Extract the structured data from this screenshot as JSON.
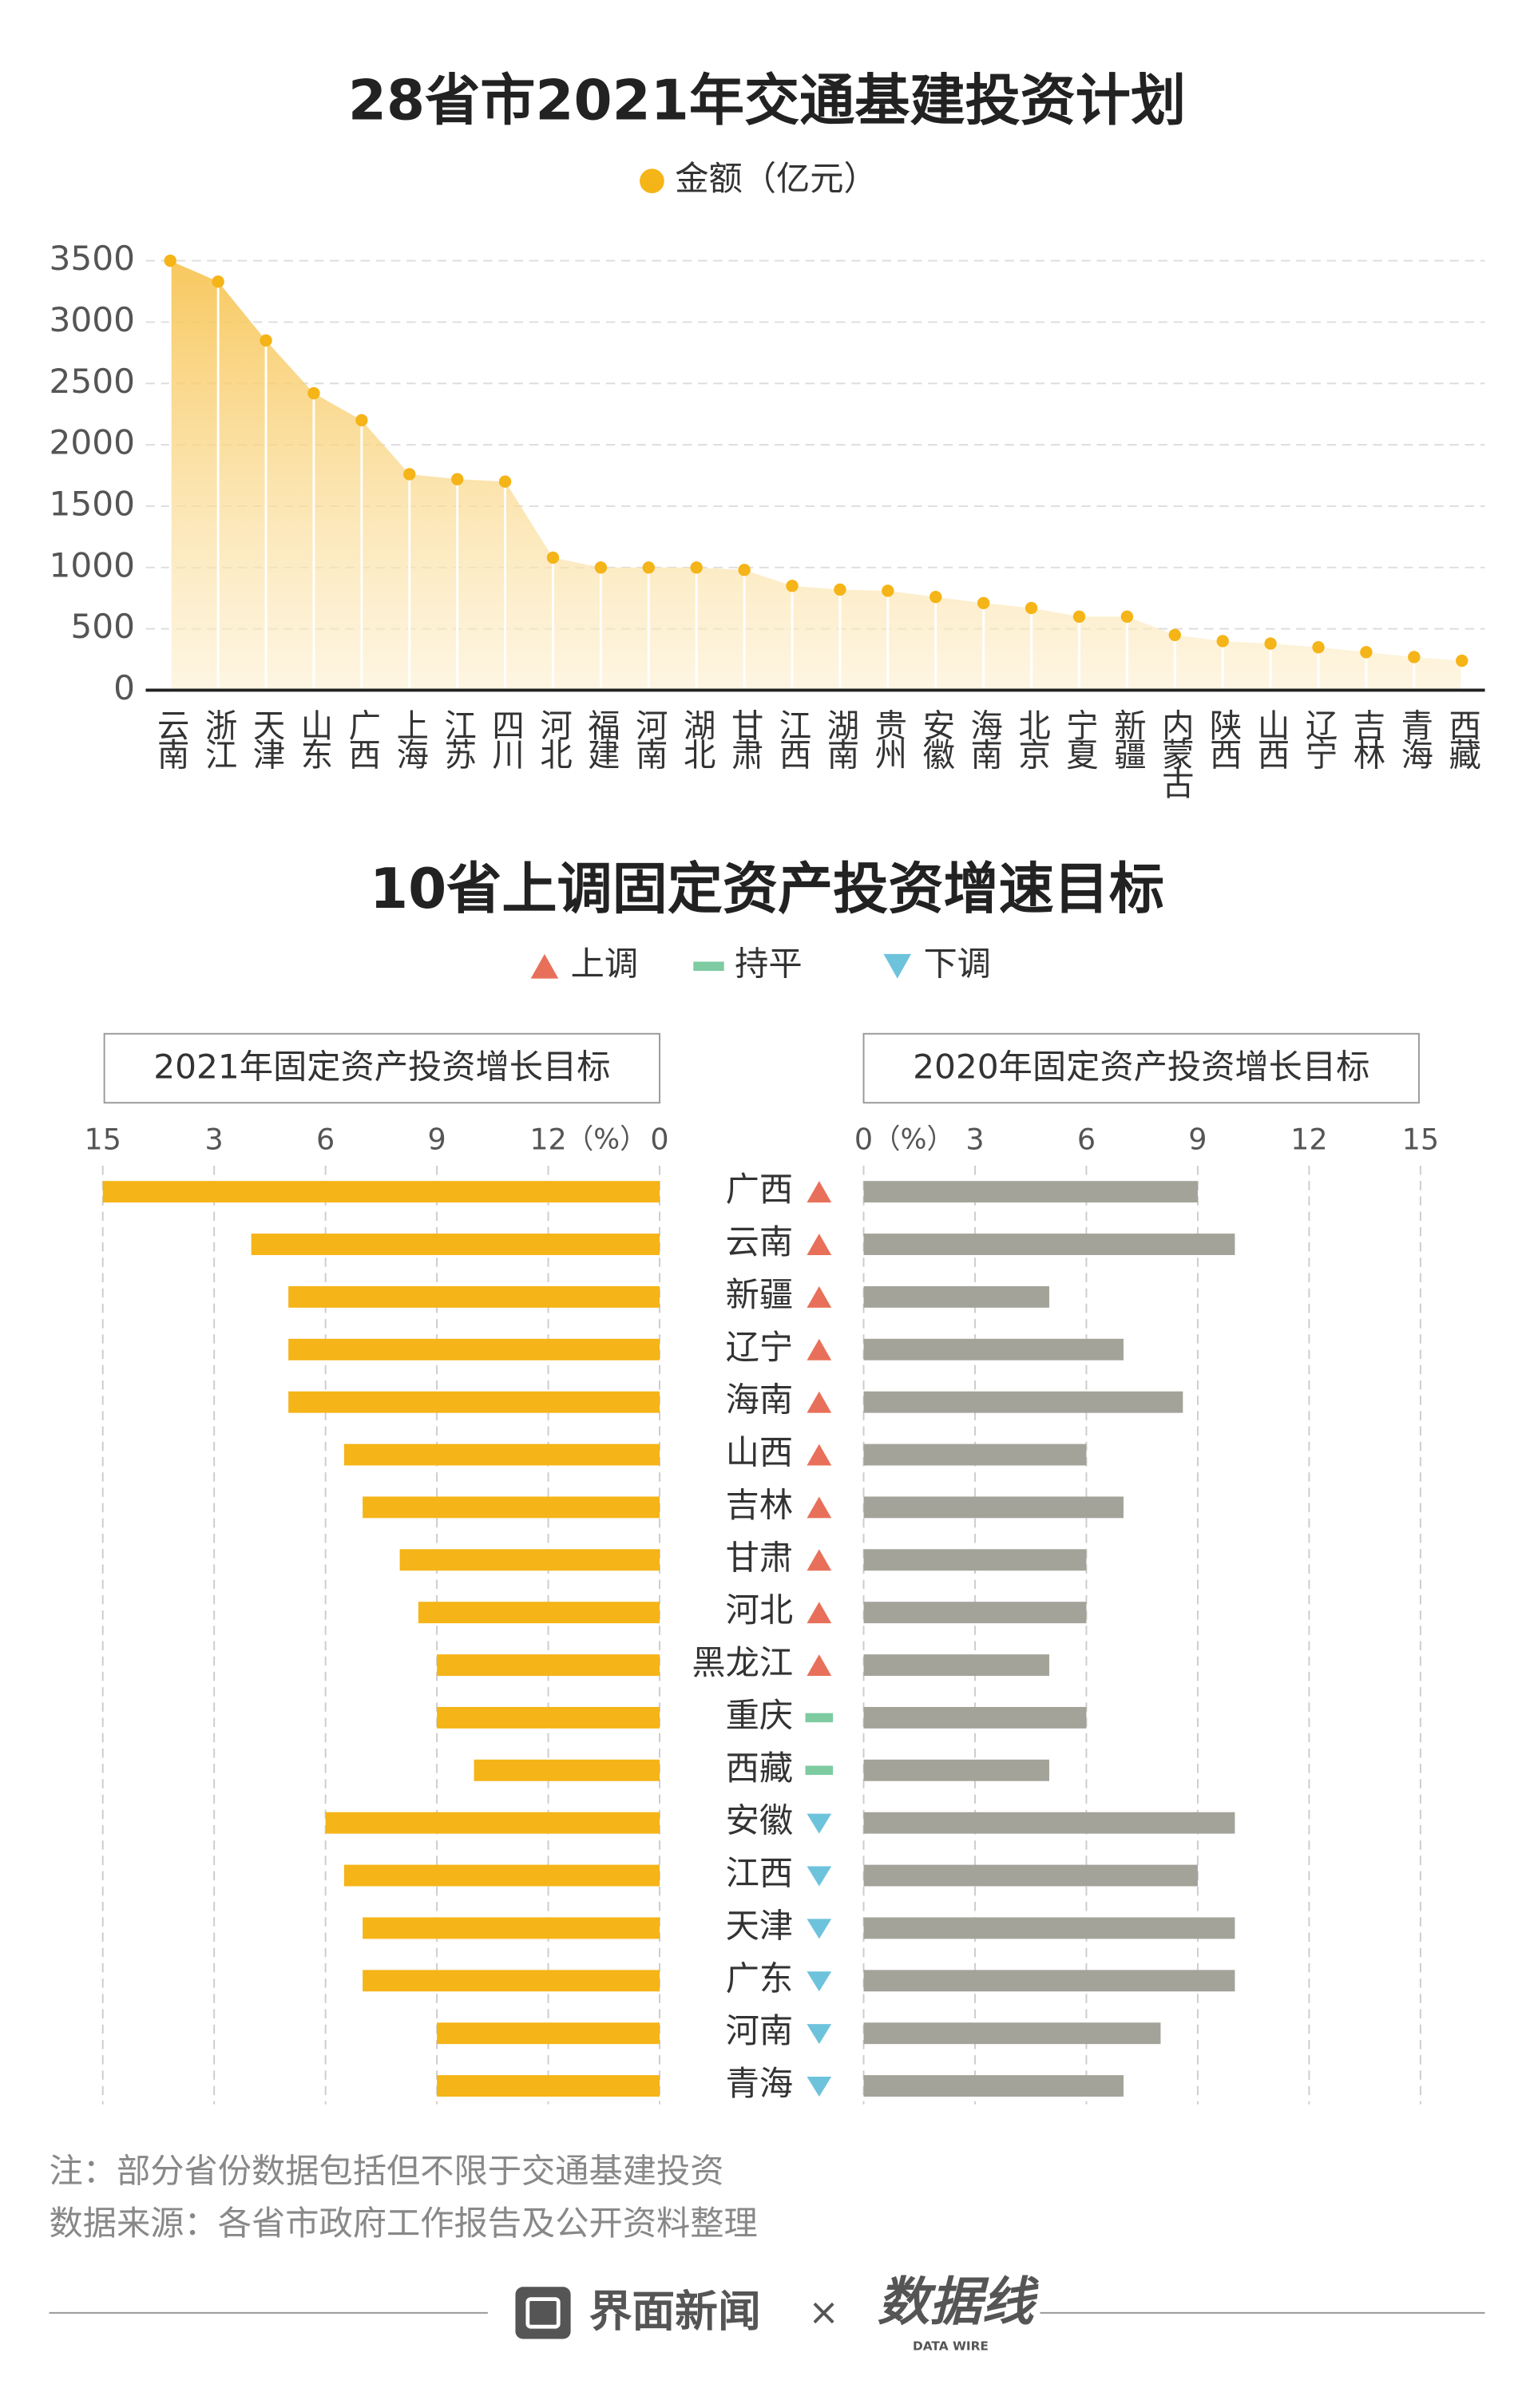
{
  "chart_data": [
    {
      "type": "area",
      "title": "28省市2021年交通基建投资计划",
      "categories": [
        "云南",
        "浙江",
        "天津",
        "山东",
        "广西",
        "上海",
        "江苏",
        "四川",
        "河北",
        "福建",
        "河南",
        "湖北",
        "甘肃",
        "江西",
        "湖南",
        "贵州",
        "安徽",
        "海南",
        "北京",
        "宁夏",
        "新疆",
        "内蒙古",
        "陕西",
        "山西",
        "辽宁",
        "吉林",
        "青海",
        "西藏"
      ],
      "series": [
        {
          "name": "金额（亿元）",
          "color": "#f5b417",
          "values": [
            3500,
            3330,
            2850,
            2420,
            2200,
            1760,
            1720,
            1700,
            1080,
            1000,
            1000,
            1000,
            980,
            850,
            820,
            810,
            760,
            710,
            670,
            600,
            600,
            450,
            400,
            380,
            350,
            310,
            270,
            240
          ]
        }
      ],
      "ylim": [
        0,
        3500
      ],
      "yticks": [
        0,
        500,
        1000,
        1500,
        2000,
        2500,
        3000,
        3500
      ],
      "grid": true
    },
    {
      "type": "butterfly",
      "title": "10省上调固定资产投资增速目标",
      "categories": [
        "广西",
        "云南",
        "新疆",
        "辽宁",
        "海南",
        "山西",
        "吉林",
        "甘肃",
        "河北",
        "黑龙江",
        "重庆",
        "西藏",
        "安徽",
        "江西",
        "天津",
        "广东",
        "河南",
        "青海"
      ],
      "series": [
        {
          "name": "2021年固定资产投资增长目标",
          "color": "#f5b417",
          "values": [
            15,
            11,
            10,
            10,
            10,
            8.5,
            8,
            7,
            6.5,
            6,
            6,
            5,
            9,
            8.5,
            8,
            8,
            6,
            6
          ]
        },
        {
          "name": "2020年固定资产投资增长目标",
          "color": "#a3a39a",
          "values": [
            9,
            10,
            5,
            7,
            8.6,
            6,
            7,
            6,
            6,
            5,
            6,
            5,
            10,
            9,
            10,
            10,
            8,
            7
          ]
        }
      ],
      "legend": [
        {
          "name": "上调",
          "color": "#e8705a"
        },
        {
          "name": "持平",
          "color": "#7ecba1"
        },
        {
          "name": "下调",
          "color": "#6ec3dc"
        }
      ],
      "adjustments": [
        "上调",
        "上调",
        "上调",
        "上调",
        "上调",
        "上调",
        "上调",
        "上调",
        "上调",
        "上调",
        "持平",
        "持平",
        "下调",
        "下调",
        "下调",
        "下调",
        "下调",
        "下调"
      ],
      "x_unit": "（%）",
      "xlim": [
        0,
        15
      ],
      "xticks": [
        {
          "value": 15,
          "label": "15"
        },
        {
          "value": 12,
          "label": "3"
        },
        {
          "value": 9,
          "label": "6"
        },
        {
          "value": 6,
          "label": "9"
        },
        {
          "value": 3,
          "label": "12"
        },
        0
      ],
      "x2ticks": [
        0,
        3,
        6,
        9,
        12,
        15
      ],
      "grid": true
    }
  ],
  "notes": [
    "注：部分省份数据包括但不限于交通基建投资",
    "数据来源：各省市政府工作报告及公开资料整理"
  ],
  "footer": {
    "brand": "界面新闻",
    "separator": "×",
    "partner": "数据线",
    "partner_sub": "DATA WIRE"
  }
}
